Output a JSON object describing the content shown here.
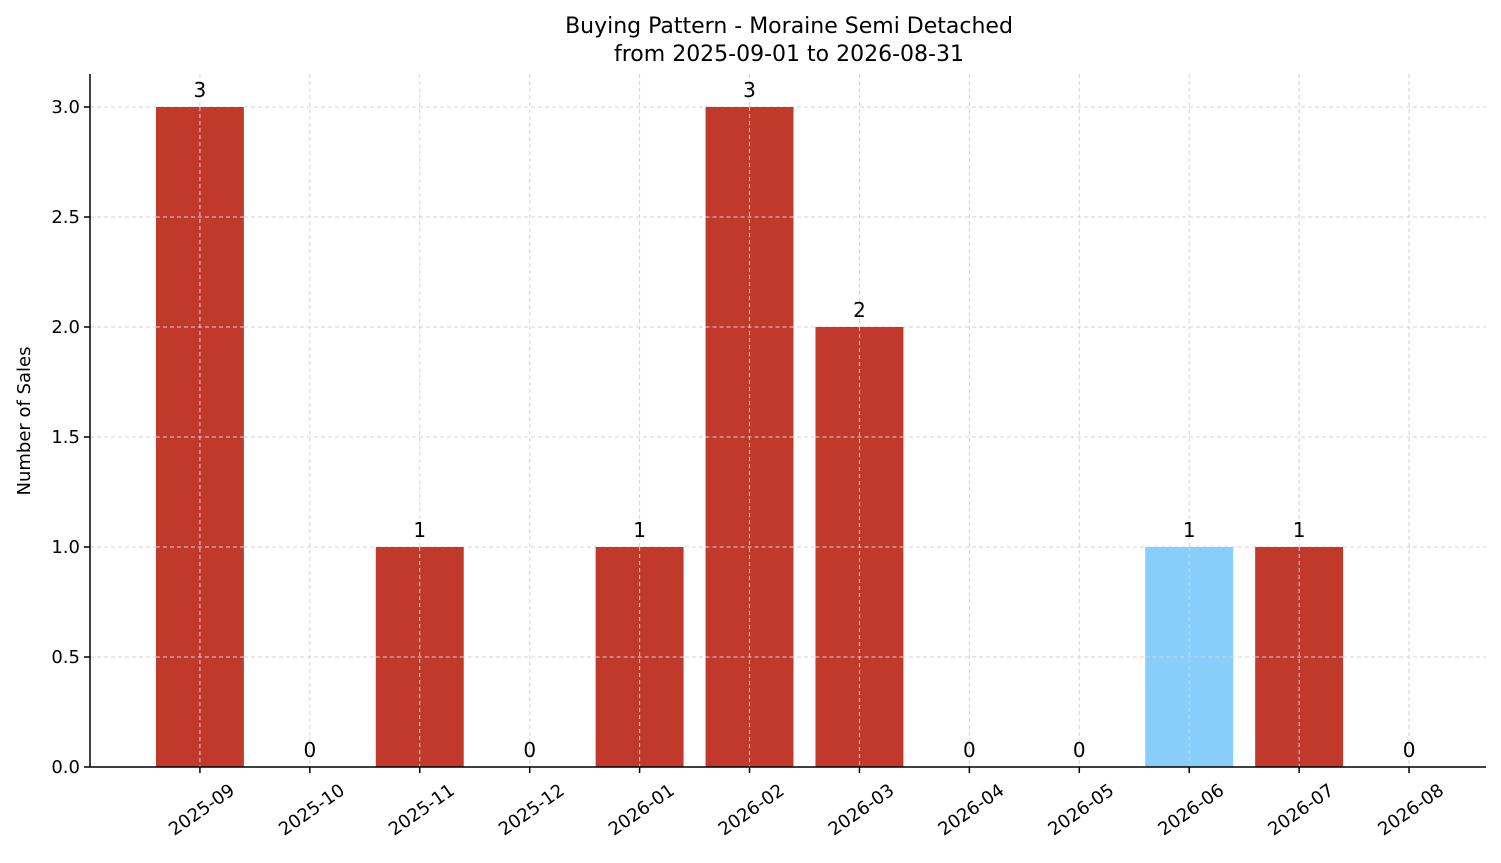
{
  "chart_data": {
    "type": "bar",
    "title": "Buying Pattern - Moraine Semi Detached",
    "subtitle": "from 2025-09-01 to 2026-08-31",
    "xlabel": "",
    "ylabel": "Number of Sales",
    "ylim": [
      0,
      3.15
    ],
    "yticks": [
      "0.0",
      "0.5",
      "1.0",
      "1.5",
      "2.0",
      "2.5",
      "3.0"
    ],
    "categories": [
      "2025-09",
      "2025-10",
      "2025-11",
      "2025-12",
      "2026-01",
      "2026-02",
      "2026-03",
      "2026-04",
      "2026-05",
      "2026-06",
      "2026-07",
      "2026-08"
    ],
    "values": [
      3,
      0,
      1,
      0,
      1,
      3,
      2,
      0,
      0,
      1,
      1,
      0
    ],
    "bar_colors": [
      "#c0392b",
      "#c0392b",
      "#c0392b",
      "#c0392b",
      "#c0392b",
      "#c0392b",
      "#c0392b",
      "#c0392b",
      "#c0392b",
      "#87cefa",
      "#c0392b",
      "#c0392b"
    ],
    "grid": true,
    "legend": false
  }
}
